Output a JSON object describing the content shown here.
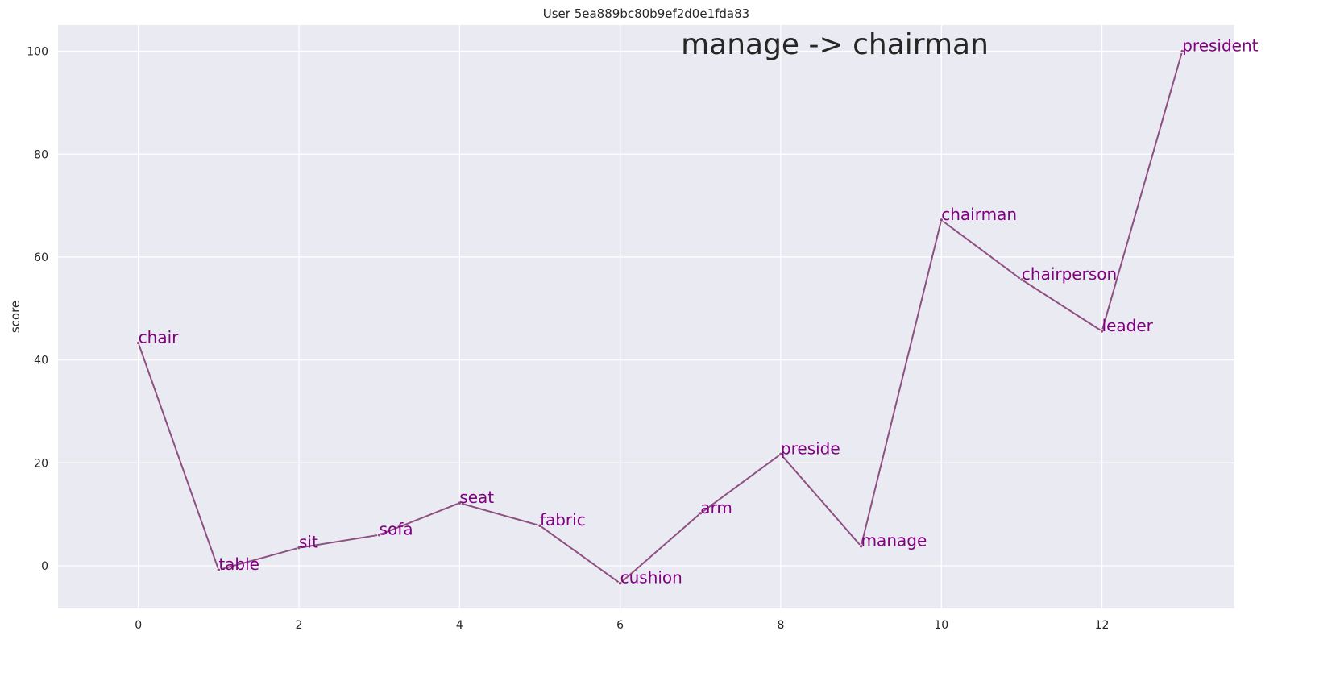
{
  "chart_data": {
    "type": "line",
    "title": "User 5ea889bc80b9ef2d0e1fda83",
    "xlabel": "",
    "ylabel": "score",
    "annotation": "manage -> chairman",
    "x": [
      0,
      1,
      2,
      3,
      4,
      5,
      6,
      7,
      8,
      9,
      10,
      11,
      12,
      13
    ],
    "values": [
      43.3,
      -0.8,
      3.5,
      6.0,
      12.2,
      7.8,
      -3.4,
      10.2,
      21.7,
      3.8,
      67.2,
      55.6,
      45.6,
      100.0
    ],
    "point_labels": [
      "chair",
      "table",
      "sit",
      "sofa",
      "seat",
      "fabric",
      "cushion",
      "arm",
      "preside",
      "manage",
      "chairman",
      "chairperson",
      "leader",
      "president"
    ],
    "xlim": [
      -1.0,
      13.65
    ],
    "ylim": [
      -8.3,
      105.1
    ],
    "xticks": [
      0,
      2,
      4,
      6,
      8,
      10,
      12
    ],
    "xtick_labels": [
      "0",
      "2",
      "4",
      "6",
      "8",
      "10",
      "12"
    ],
    "yticks": [
      0,
      20,
      40,
      60,
      80,
      100
    ],
    "ytick_labels": [
      "0",
      "20",
      "40",
      "60",
      "80",
      "100"
    ],
    "grid": true,
    "colors": {
      "line": "#8e4f82",
      "label": "#800080",
      "plot_bg": "#eaeaf2",
      "grid": "#ffffff"
    }
  }
}
